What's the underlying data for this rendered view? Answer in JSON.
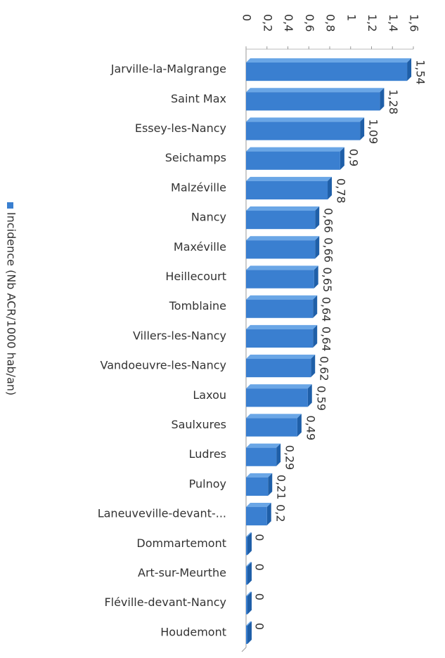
{
  "chart_data": {
    "type": "bar",
    "orientation": "horizontal",
    "categories": [
      "Jarville-la-Malgrange",
      "Saint Max",
      "Essey-les-Nancy",
      "Seichamps",
      "Malzéville",
      "Nancy",
      "Maxéville",
      "Heillecourt",
      "Tomblaine",
      "Villers-les-Nancy",
      "Vandoeuvre-les-Nancy",
      "Laxou",
      "Saulxures",
      "Ludres",
      "Pulnoy",
      "Laneuveville-devant-...",
      "Dommartemont",
      "Art-sur-Meurthe",
      "Fléville-devant-Nancy",
      "Houdemont"
    ],
    "series": [
      {
        "name": "Incidence (Nb ACR/1000 hab/an)",
        "color": "#3a7fd0",
        "values": [
          1.54,
          1.28,
          1.09,
          0.9,
          0.78,
          0.66,
          0.66,
          0.65,
          0.64,
          0.64,
          0.62,
          0.59,
          0.49,
          0.29,
          0.21,
          0.2,
          0,
          0,
          0,
          0
        ],
        "value_labels": [
          "1,54",
          "1,28",
          "1,09",
          "0,9",
          "0,78",
          "0,66",
          "0,66",
          "0,65",
          "0,64",
          "0,64",
          "0,62",
          "0,59",
          "0,49",
          "0,29",
          "0,21",
          "0,2",
          "0",
          "0",
          "0",
          "0"
        ]
      }
    ],
    "xlim": [
      0,
      1.6
    ],
    "xticks": [
      0,
      {
        "value": 0.2,
        "label": "0,2"
      },
      {
        "value": 0.4,
        "label": "0,4"
      },
      {
        "value": 0.6,
        "label": "0,6"
      },
      {
        "value": 0.8,
        "label": "0,8"
      },
      1,
      {
        "value": 1.2,
        "label": "1,2"
      },
      {
        "value": 1.4,
        "label": "1,4"
      },
      {
        "value": 1.6,
        "label": "1,6"
      }
    ],
    "legend": "left"
  }
}
